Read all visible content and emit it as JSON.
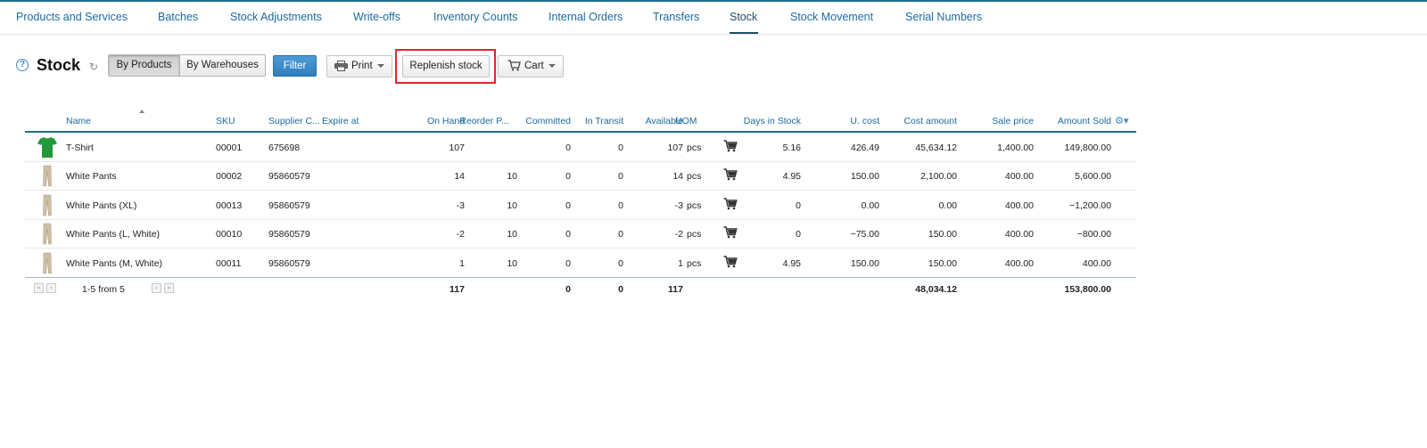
{
  "nav": {
    "tabs": [
      {
        "label": "Products and Services"
      },
      {
        "label": "Batches"
      },
      {
        "label": "Stock Adjustments"
      },
      {
        "label": "Write-offs"
      },
      {
        "label": "Inventory Counts"
      },
      {
        "label": "Internal Orders"
      },
      {
        "label": "Transfers"
      },
      {
        "label": "Stock",
        "active": true
      },
      {
        "label": "Stock Movement"
      },
      {
        "label": "Serial Numbers"
      }
    ]
  },
  "toolbar": {
    "title": "Stock",
    "help_icon": "question-circle-icon",
    "refresh_icon": "refresh-icon",
    "view_by_products": "By Products",
    "view_by_warehouses": "By Warehouses",
    "filter": "Filter",
    "print": "Print",
    "replenish": "Replenish stock",
    "cart": "Cart"
  },
  "table": {
    "columns": {
      "name": "Name",
      "sku": "SKU",
      "supplier_code": "Supplier C...",
      "expire_at": "Expire at",
      "on_hand": "On Hand",
      "reorder_point": "Reorder P...",
      "committed": "Committed",
      "in_transit": "In Transit",
      "available": "Available",
      "uom": "UOM",
      "days_in_stock": "Days in Stock",
      "unit_cost": "U. cost",
      "cost_amount": "Cost amount",
      "sale_price": "Sale price",
      "amount_sold": "Amount Sold"
    },
    "rows": [
      {
        "thumb": "tshirt",
        "name": "T-Shirt",
        "sku": "00001",
        "supplier": "675698",
        "on_hand": "107",
        "reorder": "",
        "committed": "0",
        "in_transit": "0",
        "available": "107",
        "uom": "pcs",
        "days": "5.16",
        "ucost": "426.49",
        "cost_amount": "45,634.12",
        "sale_price": "1,400.00",
        "amount_sold": "149,800.00"
      },
      {
        "thumb": "pants",
        "name": "White Pants",
        "sku": "00002",
        "supplier": "95860579",
        "on_hand": "14",
        "reorder": "10",
        "committed": "0",
        "in_transit": "0",
        "available": "14",
        "uom": "pcs",
        "days": "4.95",
        "ucost": "150.00",
        "cost_amount": "2,100.00",
        "sale_price": "400.00",
        "amount_sold": "5,600.00"
      },
      {
        "thumb": "pants",
        "name": "White Pants (XL)",
        "sku": "00013",
        "supplier": "95860579",
        "on_hand": "-3",
        "reorder": "10",
        "committed": "0",
        "in_transit": "0",
        "available": "-3",
        "uom": "pcs",
        "days": "0",
        "ucost": "0.00",
        "cost_amount": "0.00",
        "sale_price": "400.00",
        "amount_sold": "−1,200.00"
      },
      {
        "thumb": "pants",
        "name": "White Pants (L, White)",
        "sku": "00010",
        "supplier": "95860579",
        "on_hand": "-2",
        "reorder": "10",
        "committed": "0",
        "in_transit": "0",
        "available": "-2",
        "uom": "pcs",
        "days": "0",
        "ucost": "−75.00",
        "cost_amount": "150.00",
        "sale_price": "400.00",
        "amount_sold": "−800.00"
      },
      {
        "thumb": "pants",
        "name": "White Pants (M, White)",
        "sku": "00011",
        "supplier": "95860579",
        "on_hand": "1",
        "reorder": "10",
        "committed": "0",
        "in_transit": "0",
        "available": "1",
        "uom": "pcs",
        "days": "4.95",
        "ucost": "150.00",
        "cost_amount": "150.00",
        "sale_price": "400.00",
        "amount_sold": "400.00"
      }
    ],
    "footer": {
      "pager": "1-5 from 5",
      "on_hand": "117",
      "committed": "0",
      "in_transit": "0",
      "available": "117",
      "cost_amount": "48,034.12",
      "amount_sold": "153,800.00"
    }
  },
  "colors": {
    "accent": "#1a6aa0",
    "highlight": "#e0262f",
    "tshirt": "#1f9a3a",
    "pants": "#cbbfa6"
  }
}
